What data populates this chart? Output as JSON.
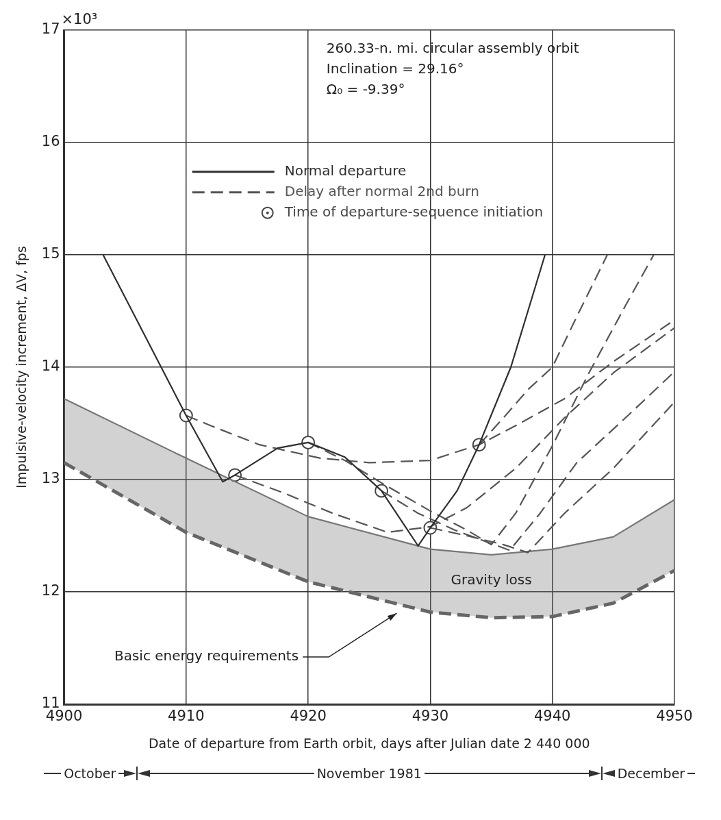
{
  "chart_data": {
    "type": "line",
    "xlabel": "Date of departure from Earth orbit, days after Julian date 2 440 000",
    "ylabel": "Impulsive-velocity increment, ΔV, fps",
    "xlim": [
      4900,
      4950
    ],
    "xticks": [
      4900,
      4910,
      4920,
      4930,
      4940,
      4950
    ],
    "ylim": [
      11,
      17
    ],
    "yticks": [
      11,
      12,
      13,
      14,
      15,
      16,
      17
    ],
    "grid": true,
    "legend": "top",
    "line_style": "solid",
    "series": [
      {
        "name": "Normal departure",
        "color": "#2f2f2f",
        "x": [
          4903.2,
          4910,
          4913,
          4914,
          4917.5,
          4920,
          4923,
          4926,
          4929,
          4930,
          4932.2,
          4934,
          4936.6,
          4939.4
        ],
        "values": [
          15,
          13.57,
          12.98,
          13.04,
          13.28,
          13.33,
          13.2,
          12.9,
          12.41,
          12.57,
          12.9,
          13.31,
          14,
          15
        ]
      },
      {
        "name": "Delay after normal 2nd burn",
        "line_style": "dashed",
        "color": "#555555",
        "x": [
          4910,
          4912,
          4916,
          4921,
          4925,
          4930,
          4934,
          4937,
          4941,
          4945,
          4950
        ],
        "values": [
          13.57,
          13.48,
          13.31,
          13.19,
          13.15,
          13.17,
          13.31,
          13.48,
          13.72,
          14.05,
          14.42
        ]
      },
      {
        "line_style": "dashed",
        "color": "#555555",
        "x": [
          4914,
          4918,
          4922,
          4926.5,
          4930,
          4933,
          4937,
          4941,
          4945,
          4950
        ],
        "values": [
          13.04,
          12.88,
          12.7,
          12.53,
          12.58,
          12.75,
          13.1,
          13.55,
          13.95,
          14.35
        ]
      },
      {
        "line_style": "dashed",
        "color": "#555555",
        "x": [
          4920,
          4923,
          4926,
          4930,
          4933,
          4935,
          4937,
          4940,
          4943,
          4946,
          4948.3
        ],
        "values": [
          13.33,
          13.17,
          12.97,
          12.72,
          12.55,
          12.42,
          12.7,
          13.3,
          13.95,
          14.55,
          15
        ]
      },
      {
        "line_style": "dashed",
        "color": "#555555",
        "x": [
          4926,
          4929,
          4932,
          4936.5,
          4939,
          4942,
          4946,
          4950
        ],
        "values": [
          12.9,
          12.7,
          12.55,
          12.37,
          12.7,
          13.15,
          13.55,
          13.96
        ]
      },
      {
        "line_style": "dashed",
        "color": "#555555",
        "x": [
          4930,
          4933,
          4936,
          4938,
          4941,
          4945,
          4950
        ],
        "values": [
          12.57,
          12.5,
          12.42,
          12.35,
          12.7,
          13.1,
          13.69
        ]
      },
      {
        "line_style": "dashed",
        "color": "#555555",
        "x": [
          4934,
          4936,
          4938,
          4940,
          4942,
          4944.5
        ],
        "values": [
          13.31,
          13.55,
          13.8,
          14,
          14.45,
          15
        ]
      },
      {
        "line_style": "dashed",
        "color": "#666666",
        "x": [
          4900,
          4910,
          4920,
          4930,
          4935,
          4940,
          4945,
          4950
        ],
        "values": [
          13.15,
          12.53,
          12.09,
          11.82,
          11.77,
          11.78,
          11.9,
          12.19
        ]
      },
      {
        "color": "#777777",
        "x": [
          4900,
          4910,
          4920,
          4930,
          4935,
          4940,
          4945,
          4950
        ],
        "values": [
          13.72,
          13.19,
          12.67,
          12.38,
          12.33,
          12.38,
          12.49,
          12.82
        ],
        "lower": [
          13.15,
          12.53,
          12.09,
          11.82,
          11.77,
          11.78,
          11.9,
          12.19
        ],
        "upper": [
          13.72,
          13.19,
          12.67,
          12.38,
          12.33,
          12.38,
          12.49,
          12.82
        ]
      },
      {
        "name": "Time of departure-sequence initiation",
        "type": "scatter",
        "marker": "circle",
        "color": "#444444",
        "x": [
          4910,
          4914,
          4920,
          4926,
          4930,
          4934
        ],
        "values": [
          13.57,
          13.04,
          13.33,
          12.9,
          12.57,
          13.31
        ]
      }
    ],
    "annotations": [
      "260.33-n. mi. circular assembly orbit",
      "Inclination = 29.16°",
      "Ω₀ = -9.39°",
      "×10³",
      "Gravity loss",
      "Basic energy requirements",
      "October",
      "November 1981",
      "December"
    ]
  }
}
